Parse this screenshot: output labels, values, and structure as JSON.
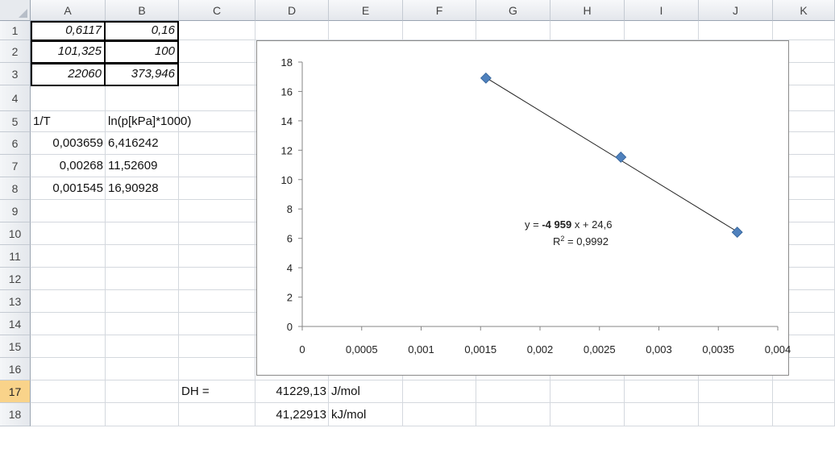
{
  "columns": [
    "A",
    "B",
    "C",
    "D",
    "E",
    "F",
    "G",
    "H",
    "I",
    "J",
    "K"
  ],
  "rows": [
    "1",
    "2",
    "3",
    "4",
    "5",
    "6",
    "7",
    "8",
    "9",
    "10",
    "11",
    "12",
    "13",
    "14",
    "15",
    "16",
    "17",
    "18"
  ],
  "selected_row": "17",
  "cells": {
    "A1": "0,6117",
    "B1": "0,16",
    "A2": "101,325",
    "B2": "100",
    "A3": "22060",
    "B3": "373,946",
    "A5": "1/T",
    "B5": "ln(p[kPa]*1000)",
    "A6": "0,003659",
    "B6": "6,416242",
    "A7": "0,00268",
    "B7": "11,52609",
    "A8": "0,001545",
    "B8": "16,90928",
    "C17": "DH =",
    "D17": "41229,13",
    "E17": "J/mol",
    "D18": "41,22913",
    "E18": "kJ/mol"
  },
  "chart_data": {
    "type": "scatter",
    "x": [
      0.003659,
      0.00268,
      0.001545
    ],
    "y": [
      6.416242,
      11.52609,
      16.90928
    ],
    "xlim": [
      0,
      0.004
    ],
    "ylim": [
      0,
      18
    ],
    "x_ticks": [
      "0",
      "0,0005",
      "0,001",
      "0,0015",
      "0,002",
      "0,0025",
      "0,003",
      "0,0035",
      "0,004"
    ],
    "y_ticks": [
      "0",
      "2",
      "4",
      "6",
      "8",
      "10",
      "12",
      "14",
      "16",
      "18"
    ],
    "trendline": {
      "slope": -4959,
      "intercept": 24.6,
      "equation_prefix": "y = ",
      "equation_slope": "-4 959",
      "equation_suffix": " x + 24,6",
      "r2_label": "R",
      "r2_sup": "2",
      "r2_value": " = 0,9992"
    },
    "marker_color": "#4f81bd",
    "grid": false,
    "legend": "none"
  }
}
